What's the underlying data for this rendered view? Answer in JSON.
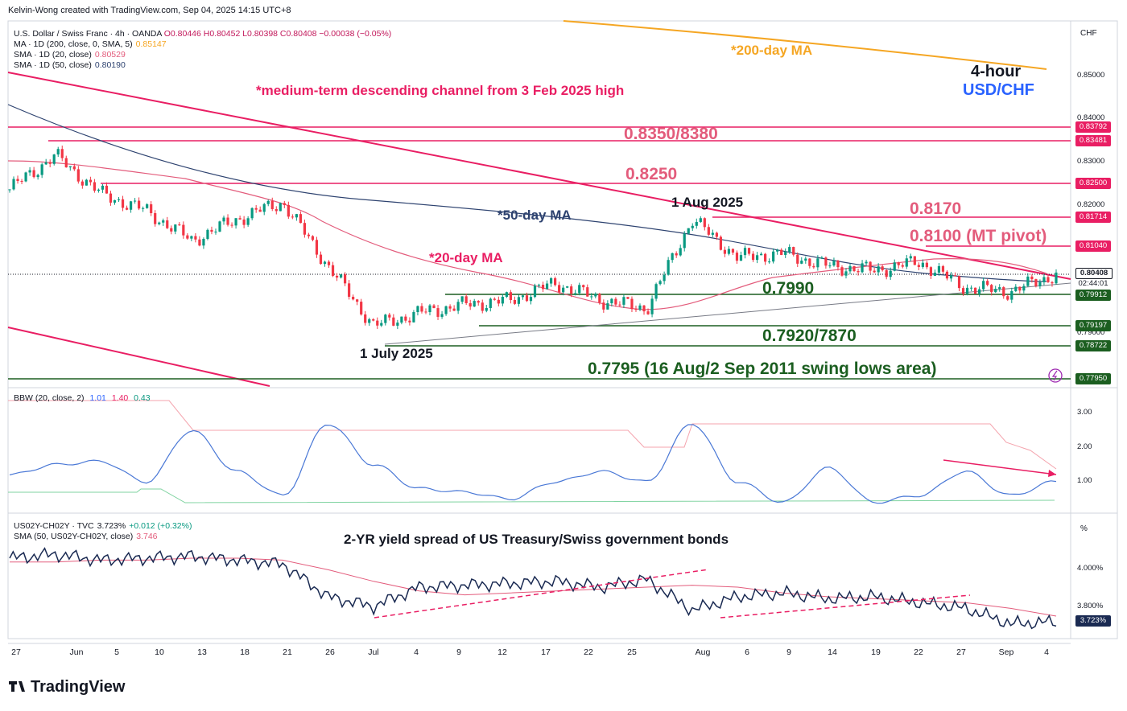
{
  "header": {
    "credit": "Kelvin-Wong created with TradingView.com, Sep 04, 2025 14:15 UTC+8"
  },
  "main_legend": {
    "symbol_line": "U.S. Dollar / Swiss Franc · 4h · OANDA",
    "ohlc": "O0.80446 H0.80452 L0.80398 C0.80408 −0.00038 (−0.05%)",
    "ma200": "MA · 1D (200, close, 0, SMA, 5)",
    "ma200_val": "0.85147",
    "sma20": "SMA · 1D (20, close)",
    "sma20_val": "0.80529",
    "sma50": "SMA · 1D (50, close)",
    "sma50_val": "0.80190"
  },
  "bbw_legend": {
    "label": "BBW (20, close, 2)",
    "v1": "1.01",
    "v2": "1.40",
    "v3": "0.43"
  },
  "spread_legend": {
    "label": "US02Y-CH02Y · TVC",
    "val": "3.723%",
    "chg": "+0.012 (+0.32%)",
    "sma_label": "SMA (50, US02Y-CH02Y, close)",
    "sma_val": "3.746"
  },
  "annotations": {
    "ma200": "*200-day MA",
    "timeframe": "4-hour",
    "pair": "USD/CHF",
    "channel": "*medium-term descending channel from 3 Feb 2025 high",
    "r1": "0.8350/8380",
    "r2": "0.8250",
    "aug": "1 Aug 2025",
    "ma50": "*50-day MA",
    "r3": "0.8170",
    "r4": "0.8100 (MT pivot)",
    "ma20": "*20-day MA",
    "s1": "0.7990",
    "s2": "0.7920/7870",
    "july": "1 July 2025",
    "s3": "0.7795 (16 Aug/2 Sep 2011 swing lows area)",
    "spread_title": "2-YR yield spread of US Treasury/Swiss government bonds"
  },
  "price_axis": {
    "unit": "CHF",
    "ticks": [
      "0.85000",
      "0.84000",
      "0.83000",
      "0.82000",
      "0.79000"
    ],
    "tags": [
      {
        "text": "0.83792",
        "color": "#e91e63"
      },
      {
        "text": "0.83481",
        "color": "#e91e63"
      },
      {
        "text": "0.82500",
        "color": "#e91e63"
      },
      {
        "text": "0.81714",
        "color": "#e91e63"
      },
      {
        "text": "0.81040",
        "color": "#e91e63"
      },
      {
        "text": "0.80408",
        "color": "#131722"
      },
      {
        "text": "02:44:01",
        "color": "#131722"
      },
      {
        "text": "0.79912",
        "color": "#1b5e20"
      },
      {
        "text": "0.79197",
        "color": "#1b5e20"
      },
      {
        "text": "0.78722",
        "color": "#1b5e20"
      },
      {
        "text": "0.77950",
        "color": "#1b5e20"
      }
    ]
  },
  "bbw_axis": {
    "ticks": [
      "3.00",
      "2.00",
      "1.00"
    ]
  },
  "spread_axis": {
    "unit": "%",
    "ticks": [
      "4.000%",
      "3.800%"
    ],
    "tag": "3.723%"
  },
  "x_axis": {
    "labels": [
      "27",
      "Jun",
      "5",
      "10",
      "13",
      "18",
      "21",
      "26",
      "Jul",
      "4",
      "9",
      "12",
      "17",
      "22",
      "25",
      "Aug",
      "6",
      "9",
      "14",
      "19",
      "22",
      "27",
      "Sep",
      "4"
    ]
  },
  "colors": {
    "resistance": "#e91e63",
    "support": "#1b5e20",
    "ma200": "#f5a623",
    "ma50": "#2e4370",
    "ma20": "#e35c7c",
    "pair": "#2962ff",
    "up": "#089981",
    "down": "#f23645",
    "bbw": "#4a78d6"
  },
  "brand": "TradingView",
  "chart_data": [
    {
      "type": "line",
      "title": "USD/CHF 4-hour",
      "x": [
        "27 May",
        "Jun",
        "5 Jun",
        "10 Jun",
        "13 Jun",
        "18 Jun",
        "21 Jun",
        "26 Jun",
        "Jul",
        "4 Jul",
        "9 Jul",
        "12 Jul",
        "17 Jul",
        "22 Jul",
        "25 Jul",
        "Aug",
        "6 Aug",
        "9 Aug",
        "14 Aug",
        "19 Aug",
        "22 Aug",
        "27 Aug",
        "Sep",
        "4 Sep"
      ],
      "series": [
        {
          "name": "USD/CHF close",
          "values": [
            0.824,
            0.832,
            0.823,
            0.819,
            0.812,
            0.817,
            0.821,
            0.806,
            0.792,
            0.795,
            0.797,
            0.798,
            0.802,
            0.798,
            0.796,
            0.817,
            0.808,
            0.809,
            0.806,
            0.805,
            0.807,
            0.801,
            0.8,
            0.8041
          ]
        }
      ],
      "levels": [
        0.8379,
        0.8348,
        0.825,
        0.8171,
        0.8104,
        0.7991,
        0.792,
        0.7872,
        0.7795
      ],
      "ylim": [
        0.778,
        0.855
      ]
    },
    {
      "type": "line",
      "title": "BBW (20, close, 2)",
      "x": [
        "27 May",
        "Jun",
        "5 Jun",
        "10 Jun",
        "13 Jun",
        "18 Jun",
        "21 Jun",
        "26 Jun",
        "Jul",
        "4 Jul",
        "9 Jul",
        "12 Jul",
        "17 Jul",
        "22 Jul",
        "25 Jul",
        "Aug",
        "6 Aug",
        "9 Aug",
        "14 Aug",
        "19 Aug",
        "22 Aug",
        "27 Aug",
        "Sep",
        "4 Sep"
      ],
      "series": [
        {
          "name": "BBW",
          "values": [
            1.2,
            1.5,
            1.6,
            1.0,
            2.5,
            1.3,
            0.6,
            2.7,
            1.5,
            0.8,
            0.7,
            0.5,
            1.0,
            1.3,
            1.0,
            2.7,
            1.0,
            0.4,
            1.4,
            0.4,
            0.6,
            1.3,
            0.6,
            1.01
          ]
        }
      ],
      "ylim": [
        0.3,
        3.4
      ]
    },
    {
      "type": "line",
      "title": "2-YR yield spread of US Treasury/Swiss government bonds",
      "x": [
        "27 May",
        "Jun",
        "5 Jun",
        "10 Jun",
        "13 Jun",
        "18 Jun",
        "21 Jun",
        "26 Jun",
        "Jul",
        "4 Jul",
        "9 Jul",
        "12 Jul",
        "17 Jul",
        "22 Jul",
        "25 Jul",
        "Aug",
        "6 Aug",
        "9 Aug",
        "14 Aug",
        "19 Aug",
        "22 Aug",
        "27 Aug",
        "Sep",
        "4 Sep"
      ],
      "series": [
        {
          "name": "US02Y-CH02Y",
          "values": [
            4.05,
            4.07,
            4.04,
            4.05,
            4.06,
            4.04,
            4.02,
            3.85,
            3.8,
            3.9,
            3.91,
            3.92,
            3.93,
            3.9,
            3.94,
            3.78,
            3.85,
            3.87,
            3.84,
            3.85,
            3.82,
            3.79,
            3.71,
            3.72
          ]
        },
        {
          "name": "SMA (50, US02Y-CH02Y, close)",
          "values": [
            4.03,
            4.03,
            4.04,
            4.04,
            4.05,
            4.05,
            4.04,
            3.99,
            3.93,
            3.88,
            3.86,
            3.87,
            3.88,
            3.89,
            3.9,
            3.91,
            3.9,
            3.87,
            3.85,
            3.84,
            3.83,
            3.82,
            3.79,
            3.75
          ]
        }
      ],
      "ylim": [
        3.68,
        4.15
      ]
    }
  ]
}
